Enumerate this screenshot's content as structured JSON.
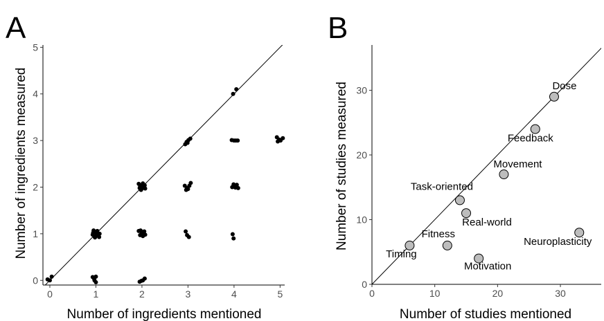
{
  "chart_data": [
    {
      "type": "scatter",
      "panel": "A",
      "xlabel": "Number of ingredients mentioned",
      "ylabel": "Number of ingredients measured",
      "xlim": [
        -0.15,
        5.1
      ],
      "ylim": [
        -0.1,
        5.05
      ],
      "xticks": [
        0,
        1,
        2,
        3,
        4,
        5
      ],
      "yticks": [
        0,
        1,
        2,
        3,
        4,
        5
      ],
      "reference_line": "y = x",
      "grid": false,
      "points": [
        {
          "x": -0.05,
          "y": 0.02
        },
        {
          "x": 0.0,
          "y": 0.0
        },
        {
          "x": 0.04,
          "y": 0.08
        },
        {
          "x": 0.93,
          "y": 0.07
        },
        {
          "x": 0.97,
          "y": 0.0
        },
        {
          "x": 1.0,
          "y": 0.08
        },
        {
          "x": 1.0,
          "y": -0.04
        },
        {
          "x": 0.96,
          "y": 0.04
        },
        {
          "x": 0.93,
          "y": 0.98
        },
        {
          "x": 0.95,
          "y": 1.07
        },
        {
          "x": 0.97,
          "y": 0.94
        },
        {
          "x": 0.99,
          "y": 1.03
        },
        {
          "x": 1.01,
          "y": 0.96
        },
        {
          "x": 1.03,
          "y": 1.06
        },
        {
          "x": 1.05,
          "y": 0.97
        },
        {
          "x": 1.07,
          "y": 0.93
        },
        {
          "x": 0.98,
          "y": 0.92
        },
        {
          "x": 1.03,
          "y": 0.99
        },
        {
          "x": 0.94,
          "y": 1.02
        },
        {
          "x": 1.08,
          "y": 1.0
        },
        {
          "x": 1.93,
          "y": 2.07
        },
        {
          "x": 1.95,
          "y": 1.98
        },
        {
          "x": 1.97,
          "y": 2.03
        },
        {
          "x": 1.99,
          "y": 1.96
        },
        {
          "x": 2.01,
          "y": 2.05
        },
        {
          "x": 2.03,
          "y": 1.99
        },
        {
          "x": 2.05,
          "y": 2.02
        },
        {
          "x": 2.07,
          "y": 1.97
        },
        {
          "x": 1.96,
          "y": 2.01
        },
        {
          "x": 2.02,
          "y": 2.08
        },
        {
          "x": 2.06,
          "y": 2.04
        },
        {
          "x": 1.98,
          "y": 1.94
        },
        {
          "x": 1.93,
          "y": 1.06
        },
        {
          "x": 1.96,
          "y": 0.97
        },
        {
          "x": 1.99,
          "y": 1.04
        },
        {
          "x": 2.02,
          "y": 0.95
        },
        {
          "x": 2.05,
          "y": 1.05
        },
        {
          "x": 2.07,
          "y": 0.98
        },
        {
          "x": 1.97,
          "y": 1.07
        },
        {
          "x": 2.0,
          "y": 0.99
        },
        {
          "x": 1.95,
          "y": -0.03
        },
        {
          "x": 1.99,
          "y": -0.01
        },
        {
          "x": 2.02,
          "y": 0.0
        },
        {
          "x": 2.06,
          "y": 0.04
        },
        {
          "x": 2.94,
          "y": 2.92
        },
        {
          "x": 2.97,
          "y": 2.97
        },
        {
          "x": 3.01,
          "y": 3.01
        },
        {
          "x": 3.05,
          "y": 3.04
        },
        {
          "x": 2.99,
          "y": 2.95
        },
        {
          "x": 2.93,
          "y": 2.03
        },
        {
          "x": 2.96,
          "y": 1.94
        },
        {
          "x": 3.0,
          "y": 1.96
        },
        {
          "x": 3.03,
          "y": 2.03
        },
        {
          "x": 3.06,
          "y": 2.09
        },
        {
          "x": 2.98,
          "y": 1.98
        },
        {
          "x": 2.95,
          "y": 1.05
        },
        {
          "x": 2.98,
          "y": 0.97
        },
        {
          "x": 3.02,
          "y": 0.93
        },
        {
          "x": 3.98,
          "y": 4.0
        },
        {
          "x": 4.05,
          "y": 4.1
        },
        {
          "x": 3.95,
          "y": 3.01
        },
        {
          "x": 4.0,
          "y": 3.0
        },
        {
          "x": 4.04,
          "y": 3.0
        },
        {
          "x": 4.08,
          "y": 3.0
        },
        {
          "x": 3.96,
          "y": 2.0
        },
        {
          "x": 3.99,
          "y": 2.06
        },
        {
          "x": 4.03,
          "y": 1.99
        },
        {
          "x": 4.06,
          "y": 2.05
        },
        {
          "x": 4.09,
          "y": 1.98
        },
        {
          "x": 3.97,
          "y": 0.99
        },
        {
          "x": 3.99,
          "y": 0.9
        },
        {
          "x": 4.93,
          "y": 3.07
        },
        {
          "x": 4.95,
          "y": 2.98
        },
        {
          "x": 4.98,
          "y": 3.02
        },
        {
          "x": 5.01,
          "y": 3.0
        },
        {
          "x": 5.06,
          "y": 3.05
        }
      ]
    },
    {
      "type": "scatter",
      "panel": "B",
      "xlabel": "Number of studies mentioned",
      "ylabel": "Number of studies measured",
      "xlim": [
        0,
        36.5
      ],
      "ylim": [
        0,
        37
      ],
      "xticks": [
        0,
        10,
        20,
        30
      ],
      "yticks": [
        0,
        10,
        20,
        30
      ],
      "reference_line": "y = x",
      "grid": false,
      "points": [
        {
          "label": "Dose",
          "x": 29,
          "y": 29
        },
        {
          "label": "Feedback",
          "x": 26,
          "y": 24
        },
        {
          "label": "Movement",
          "x": 21,
          "y": 17
        },
        {
          "label": "Task-oriented",
          "x": 14,
          "y": 13
        },
        {
          "label": "Real-world",
          "x": 15,
          "y": 11
        },
        {
          "label": "Fitness",
          "x": 12,
          "y": 6
        },
        {
          "label": "Timing",
          "x": 6,
          "y": 6
        },
        {
          "label": "Motivation",
          "x": 17,
          "y": 4
        },
        {
          "label": "Neuroplasticity",
          "x": 33,
          "y": 8
        }
      ]
    }
  ]
}
